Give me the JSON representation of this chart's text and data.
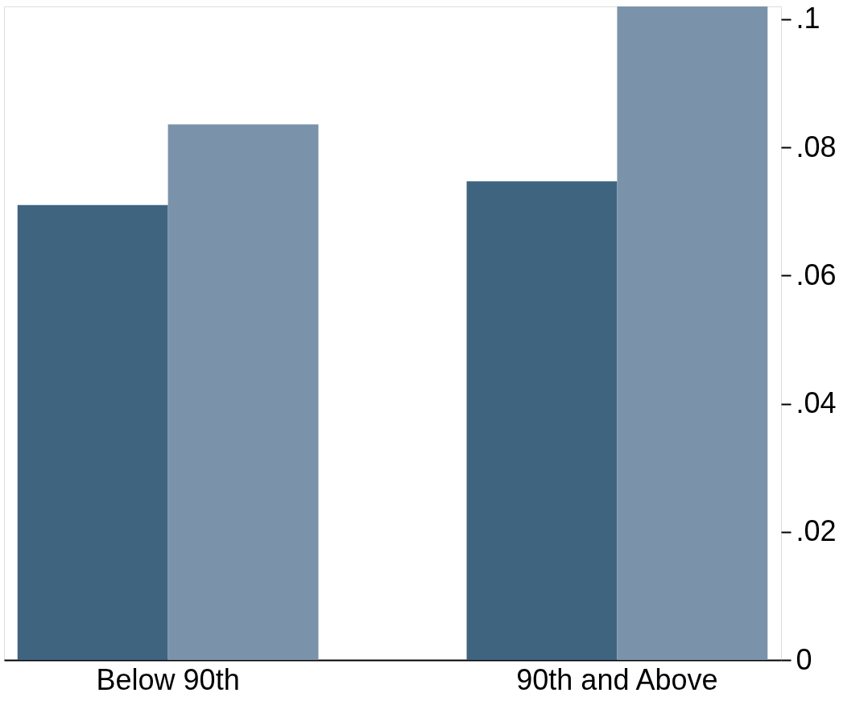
{
  "chart_data": {
    "type": "bar",
    "categories": [
      "Below 90th",
      "90th and Above"
    ],
    "series": [
      {
        "color": "#3f6480",
        "values": [
          0.071,
          0.0747
        ]
      },
      {
        "color": "#7b93aa",
        "values": [
          0.0836,
          0.102
        ]
      }
    ],
    "ylim": [
      0,
      0.102
    ],
    "yticks": [
      0,
      {
        "value": 0.02,
        "label": ".02"
      },
      {
        "value": 0.04,
        "label": ".04"
      },
      {
        "value": 0.06,
        "label": ".06"
      },
      {
        "value": 0.08,
        "label": ".08"
      },
      {
        "value": 0.1,
        "label": ".1"
      }
    ],
    "grid": false,
    "legend": false
  }
}
